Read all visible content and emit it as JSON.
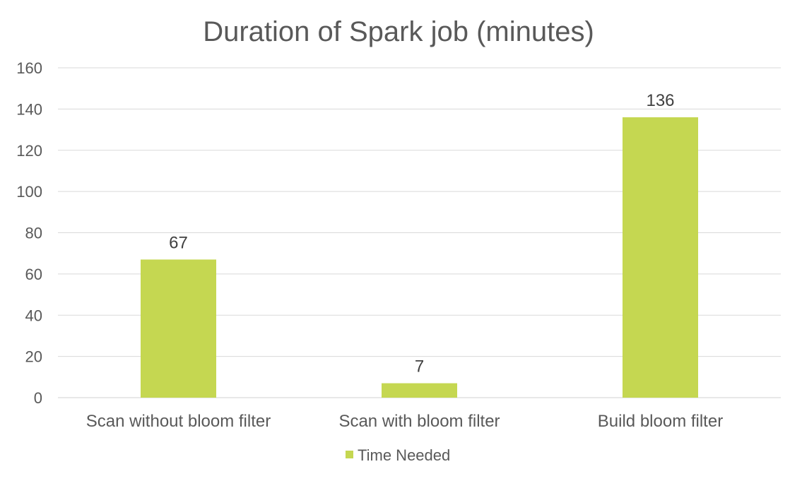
{
  "chart_data": {
    "type": "bar",
    "title": "Duration of Spark job (minutes)",
    "categories": [
      "Scan without bloom filter",
      "Scan with bloom filter",
      "Build bloom filter"
    ],
    "series": [
      {
        "name": "Time Needed",
        "values": [
          67,
          7,
          136
        ],
        "color": "#c5d751"
      }
    ],
    "data_labels": [
      "67",
      "7",
      "136"
    ],
    "yticks": [
      0,
      20,
      40,
      60,
      80,
      100,
      120,
      140,
      160
    ],
    "ylim": [
      0,
      160
    ],
    "xlabel": "",
    "ylabel": "",
    "grid": true,
    "legend": "bottom-center"
  }
}
